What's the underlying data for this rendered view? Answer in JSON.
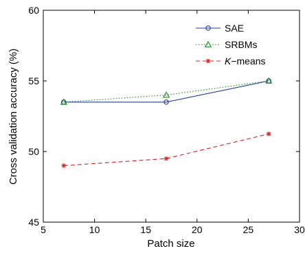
{
  "chart_data": {
    "type": "line",
    "title": "",
    "xlabel": "Patch size",
    "ylabel": "Cross validation accuracy (%)",
    "xlim": [
      5,
      30
    ],
    "ylim": [
      45,
      60
    ],
    "xticks": [
      5,
      10,
      15,
      20,
      25,
      30
    ],
    "yticks": [
      45,
      50,
      55,
      60
    ],
    "grid": false,
    "legend_position": "top-right",
    "x": [
      7,
      17,
      27
    ],
    "series": [
      {
        "name": "SAE",
        "values": [
          53.5,
          53.5,
          55.0
        ],
        "color": "#1f3d99",
        "line": "solid",
        "marker": "circle"
      },
      {
        "name": "SRBMs",
        "values": [
          53.5,
          54.0,
          55.0
        ],
        "color": "#1a8a1a",
        "line": "dotted",
        "marker": "triangle"
      },
      {
        "name": "K−means",
        "values": [
          49.0,
          49.5,
          51.25
        ],
        "color": "#e02020",
        "line": "dashed",
        "marker": "asterisk"
      }
    ]
  }
}
